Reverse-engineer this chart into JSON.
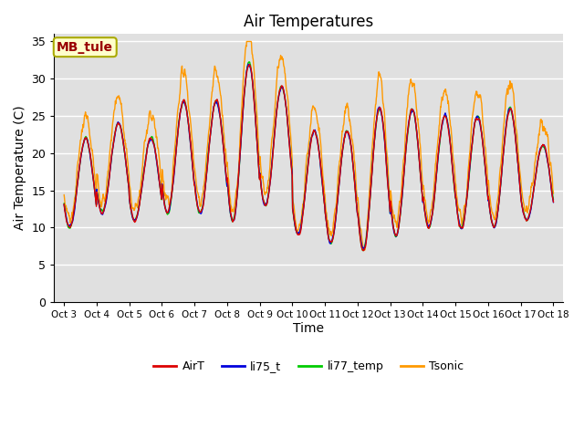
{
  "title": "Air Temperatures",
  "ylabel": "Air Temperature (C)",
  "xlabel": "Time",
  "annotation_text": "MB_tule",
  "annotation_fc": "#ffffcc",
  "annotation_ec": "#aaaa00",
  "annotation_tc": "#990000",
  "ylim": [
    0,
    36
  ],
  "yticks": [
    0,
    5,
    10,
    15,
    20,
    25,
    30,
    35
  ],
  "x_labels": [
    "Oct 3",
    "Oct 4",
    "Oct 5",
    "Oct 6",
    "Oct 7",
    "Oct 8",
    "Oct 9",
    "Oct 10",
    "Oct 11",
    "Oct 12",
    "Oct 13",
    "Oct 14",
    "Oct 15",
    "Oct 16",
    "Oct 17",
    "Oct 18"
  ],
  "colors": {
    "AirT": "#dd0000",
    "li75_t": "#0000dd",
    "li77_temp": "#00cc00",
    "Tsonic": "#ff9900"
  },
  "background_plot": "#e0e0e0",
  "background_fig": "#ffffff",
  "grid_color": "#ffffff",
  "title_fontsize": 12,
  "axis_label_fontsize": 10,
  "daily_mins": [
    10,
    12,
    11,
    12,
    12,
    11,
    13,
    9,
    8,
    7,
    9,
    10,
    10,
    10,
    11
  ],
  "daily_maxs": [
    22,
    24,
    22,
    27,
    27,
    32,
    29,
    23,
    23,
    26,
    26,
    25,
    25,
    26,
    21
  ]
}
